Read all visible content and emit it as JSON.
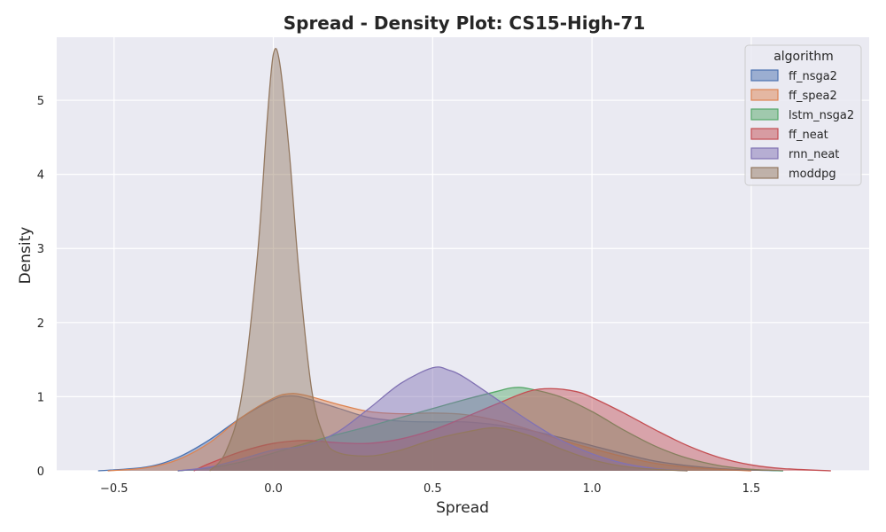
{
  "chart_data": {
    "type": "area",
    "title": "Spread - Density Plot: CS15-High-71",
    "xlabel": "Spread",
    "ylabel": "Density",
    "xlim": [
      -0.68,
      1.87
    ],
    "ylim": [
      0,
      5.85
    ],
    "xticks": [
      -0.5,
      0.0,
      0.5,
      1.0,
      1.5
    ],
    "xtick_labels": [
      "−0.5",
      "0.0",
      "0.5",
      "1.0",
      "1.5"
    ],
    "yticks": [
      0,
      1,
      2,
      3,
      4,
      5
    ],
    "ytick_labels": [
      "0",
      "1",
      "2",
      "3",
      "4",
      "5"
    ],
    "grid": true,
    "legend": {
      "title": "algorithm",
      "placement": "top-right"
    },
    "series": [
      {
        "name": "ff_nsga2",
        "color": "#4c72b0",
        "points": [
          [
            -0.55,
            0
          ],
          [
            -0.4,
            0.05
          ],
          [
            -0.3,
            0.18
          ],
          [
            -0.2,
            0.42
          ],
          [
            -0.1,
            0.72
          ],
          [
            0.0,
            0.96
          ],
          [
            0.05,
            1.01
          ],
          [
            0.1,
            0.98
          ],
          [
            0.2,
            0.85
          ],
          [
            0.3,
            0.72
          ],
          [
            0.4,
            0.67
          ],
          [
            0.5,
            0.66
          ],
          [
            0.6,
            0.66
          ],
          [
            0.7,
            0.62
          ],
          [
            0.8,
            0.55
          ],
          [
            0.9,
            0.45
          ],
          [
            1.0,
            0.34
          ],
          [
            1.1,
            0.23
          ],
          [
            1.2,
            0.13
          ],
          [
            1.3,
            0.07
          ],
          [
            1.4,
            0.03
          ],
          [
            1.5,
            0.01
          ],
          [
            1.6,
            0
          ]
        ]
      },
      {
        "name": "ff_spea2",
        "color": "#dd8452",
        "points": [
          [
            -0.52,
            0
          ],
          [
            -0.4,
            0.04
          ],
          [
            -0.3,
            0.15
          ],
          [
            -0.2,
            0.38
          ],
          [
            -0.1,
            0.72
          ],
          [
            0.0,
            0.98
          ],
          [
            0.05,
            1.04
          ],
          [
            0.1,
            1.02
          ],
          [
            0.2,
            0.9
          ],
          [
            0.3,
            0.8
          ],
          [
            0.4,
            0.77
          ],
          [
            0.5,
            0.78
          ],
          [
            0.6,
            0.76
          ],
          [
            0.7,
            0.68
          ],
          [
            0.8,
            0.56
          ],
          [
            0.9,
            0.42
          ],
          [
            1.0,
            0.3
          ],
          [
            1.1,
            0.19
          ],
          [
            1.2,
            0.1
          ],
          [
            1.3,
            0.05
          ],
          [
            1.4,
            0.02
          ],
          [
            1.5,
            0
          ]
        ]
      },
      {
        "name": "lstm_nsga2",
        "color": "#55a868",
        "points": [
          [
            -0.3,
            0
          ],
          [
            -0.2,
            0.04
          ],
          [
            -0.1,
            0.12
          ],
          [
            0.0,
            0.24
          ],
          [
            0.1,
            0.37
          ],
          [
            0.2,
            0.49
          ],
          [
            0.3,
            0.6
          ],
          [
            0.4,
            0.72
          ],
          [
            0.5,
            0.84
          ],
          [
            0.6,
            0.96
          ],
          [
            0.7,
            1.07
          ],
          [
            0.75,
            1.12
          ],
          [
            0.8,
            1.11
          ],
          [
            0.9,
            1.0
          ],
          [
            1.0,
            0.8
          ],
          [
            1.1,
            0.55
          ],
          [
            1.2,
            0.33
          ],
          [
            1.3,
            0.17
          ],
          [
            1.4,
            0.07
          ],
          [
            1.5,
            0.02
          ],
          [
            1.6,
            0
          ]
        ]
      },
      {
        "name": "ff_neat",
        "color": "#c44e52",
        "points": [
          [
            -0.25,
            0
          ],
          [
            -0.2,
            0.1
          ],
          [
            -0.1,
            0.26
          ],
          [
            0.0,
            0.37
          ],
          [
            0.1,
            0.41
          ],
          [
            0.2,
            0.38
          ],
          [
            0.3,
            0.37
          ],
          [
            0.4,
            0.43
          ],
          [
            0.5,
            0.55
          ],
          [
            0.6,
            0.72
          ],
          [
            0.7,
            0.9
          ],
          [
            0.8,
            1.07
          ],
          [
            0.87,
            1.11
          ],
          [
            0.95,
            1.07
          ],
          [
            1.0,
            0.99
          ],
          [
            1.1,
            0.78
          ],
          [
            1.2,
            0.55
          ],
          [
            1.3,
            0.34
          ],
          [
            1.4,
            0.18
          ],
          [
            1.5,
            0.08
          ],
          [
            1.6,
            0.03
          ],
          [
            1.75,
            0
          ]
        ]
      },
      {
        "name": "rnn_neat",
        "color": "#8172b3",
        "points": [
          [
            -0.3,
            0
          ],
          [
            -0.2,
            0.05
          ],
          [
            -0.1,
            0.16
          ],
          [
            0.0,
            0.28
          ],
          [
            0.1,
            0.34
          ],
          [
            0.2,
            0.52
          ],
          [
            0.3,
            0.84
          ],
          [
            0.4,
            1.18
          ],
          [
            0.5,
            1.39
          ],
          [
            0.55,
            1.36
          ],
          [
            0.6,
            1.26
          ],
          [
            0.7,
            0.97
          ],
          [
            0.8,
            0.68
          ],
          [
            0.9,
            0.42
          ],
          [
            1.0,
            0.23
          ],
          [
            1.1,
            0.1
          ],
          [
            1.2,
            0.03
          ],
          [
            1.3,
            0
          ]
        ]
      },
      {
        "name": "moddpg",
        "color": "#937860",
        "points": [
          [
            -0.2,
            0
          ],
          [
            -0.15,
            0.25
          ],
          [
            -0.1,
            1.0
          ],
          [
            -0.05,
            2.9
          ],
          [
            -0.02,
            4.7
          ],
          [
            0.0,
            5.62
          ],
          [
            0.02,
            5.5
          ],
          [
            0.05,
            4.3
          ],
          [
            0.08,
            2.7
          ],
          [
            0.12,
            1.1
          ],
          [
            0.16,
            0.45
          ],
          [
            0.2,
            0.25
          ],
          [
            0.3,
            0.2
          ],
          [
            0.4,
            0.28
          ],
          [
            0.5,
            0.42
          ],
          [
            0.6,
            0.52
          ],
          [
            0.7,
            0.58
          ],
          [
            0.8,
            0.48
          ],
          [
            0.9,
            0.3
          ],
          [
            1.0,
            0.15
          ],
          [
            1.1,
            0.06
          ],
          [
            1.2,
            0.02
          ],
          [
            1.3,
            0
          ]
        ]
      }
    ]
  }
}
